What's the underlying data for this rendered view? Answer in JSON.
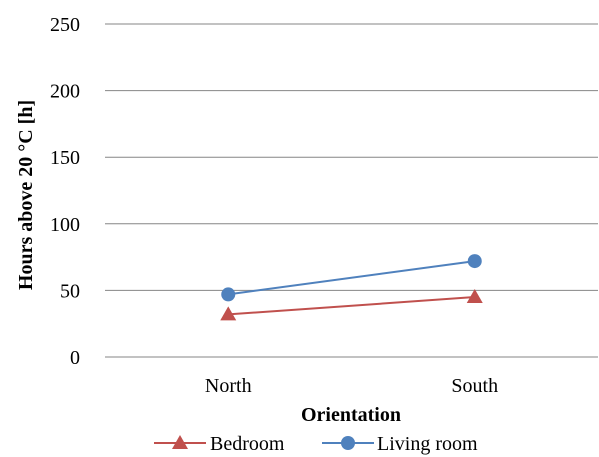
{
  "chart_data": {
    "type": "line",
    "title": "",
    "xlabel": "Orientation",
    "ylabel": "Hours above 20 °C [h]",
    "categories": [
      "North",
      "South"
    ],
    "ylim": [
      0,
      250
    ],
    "yticks": [
      0,
      50,
      100,
      150,
      200,
      250
    ],
    "grid": true,
    "legend_position": "bottom",
    "series": [
      {
        "name": "Bedroom",
        "values": [
          32,
          45
        ],
        "color": "#c0504d",
        "marker": "triangle"
      },
      {
        "name": "Living room",
        "values": [
          47,
          72
        ],
        "color": "#4f81bd",
        "marker": "circle"
      }
    ]
  }
}
